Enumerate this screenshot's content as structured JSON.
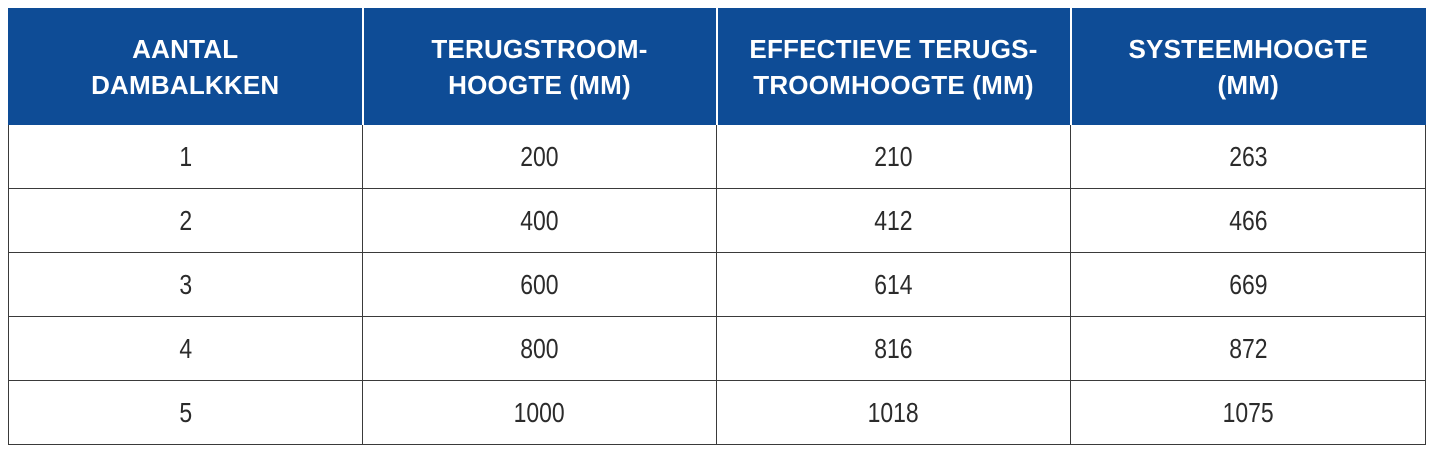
{
  "table": {
    "headers": [
      [
        "AANTAL",
        "DAMBALKKEN"
      ],
      [
        "TERUGSTROOM-",
        "HOOGTE (MM)"
      ],
      [
        "EFFECTIEVE TERUGS-",
        "TROOMHOOGTE (MM)"
      ],
      [
        "SYSTEEMHOOGTE",
        "(MM)"
      ]
    ],
    "rows": [
      [
        "1",
        "200",
        "210",
        "263"
      ],
      [
        "2",
        "400",
        "412",
        "466"
      ],
      [
        "3",
        "600",
        "614",
        "669"
      ],
      [
        "4",
        "800",
        "816",
        "872"
      ],
      [
        "5",
        "1000",
        "1018",
        "1075"
      ]
    ],
    "colors": {
      "header_bg": "#0e4c96",
      "header_text": "#ffffff",
      "cell_text": "#2b2b2b",
      "border": "#3a3a3a"
    }
  }
}
